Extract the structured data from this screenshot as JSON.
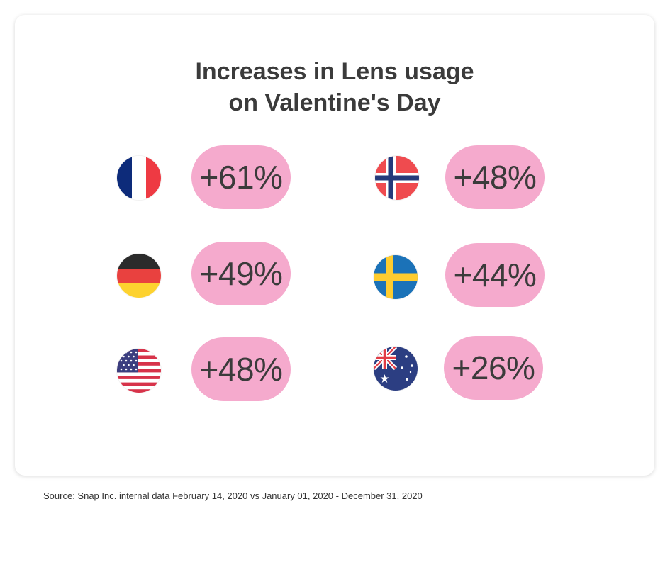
{
  "chart_data": {
    "type": "table",
    "title": [
      "Increases in Lens usage",
      "on Valentine's Day"
    ],
    "entries": [
      {
        "country_icon": "france-flag-icon",
        "value": 61,
        "label": "+61%"
      },
      {
        "country_icon": "norway-flag-icon",
        "value": 48,
        "label": "+48%"
      },
      {
        "country_icon": "germany-flag-icon",
        "value": 49,
        "label": "+49%"
      },
      {
        "country_icon": "sweden-flag-icon",
        "value": 44,
        "label": "+44%"
      },
      {
        "country_icon": "usa-flag-icon",
        "value": 48,
        "label": "+48%"
      },
      {
        "country_icon": "australia-flag-icon",
        "value": 26,
        "label": "+26%"
      }
    ],
    "unit": "%"
  },
  "source": "Source: Snap Inc. internal data February 14, 2020 vs January 01, 2020 - December 31, 2020",
  "colors": {
    "pill": "#f5aacd",
    "text": "#3b3b3b",
    "card_bg": "#ffffff"
  }
}
